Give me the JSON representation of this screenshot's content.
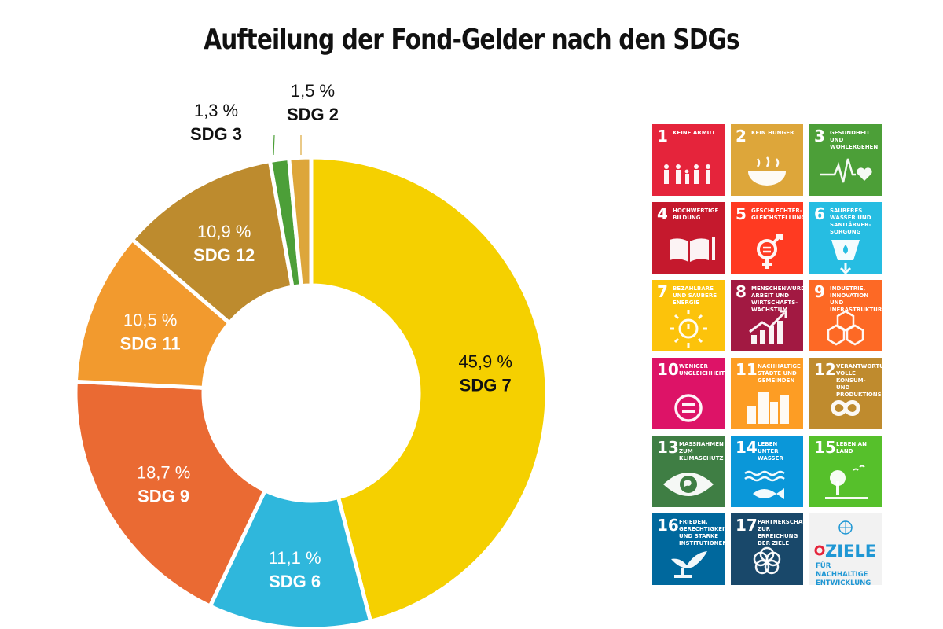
{
  "title": "Aufteilung der Fond-Gelder nach den SDGs",
  "chart_data": {
    "type": "pie",
    "donut": true,
    "slices": [
      {
        "label": "SDG 7",
        "value": 45.9,
        "value_label": "45,9 %",
        "color": "#f5d000"
      },
      {
        "label": "SDG 6",
        "value": 11.1,
        "value_label": "11,1 %",
        "color": "#2fb7dc"
      },
      {
        "label": "SDG 9",
        "value": 18.7,
        "value_label": "18,7 %",
        "color": "#ea6a33"
      },
      {
        "label": "SDG 11",
        "value": 10.5,
        "value_label": "10,5 %",
        "color": "#f29a2e"
      },
      {
        "label": "SDG 12",
        "value": 10.9,
        "value_label": "10,9 %",
        "color": "#bd8b2e"
      },
      {
        "label": "SDG 3",
        "value": 1.3,
        "value_label": "1,3 %",
        "color": "#4c9f38"
      },
      {
        "label": "SDG 2",
        "value": 1.5,
        "value_label": "1,5 %",
        "color": "#dda63a"
      }
    ]
  },
  "sdg_tiles": [
    {
      "number": "1",
      "label": "Keine Armut",
      "color": "#e5243b",
      "icon": "family-icon"
    },
    {
      "number": "2",
      "label": "Kein Hunger",
      "color": "#dda63a",
      "icon": "bowl-icon"
    },
    {
      "number": "3",
      "label": "Gesundheit und Wohlergehen",
      "color": "#4c9f38",
      "icon": "heartbeat-icon"
    },
    {
      "number": "4",
      "label": "Hochwertige Bildung",
      "color": "#c5192d",
      "icon": "book-icon"
    },
    {
      "number": "5",
      "label": "Geschlechter-gleichstellung",
      "color": "#ff3a21",
      "icon": "gender-icon"
    },
    {
      "number": "6",
      "label": "Sauberes Wasser und Sanitärver-sorgung",
      "color": "#26bde2",
      "icon": "water-drop-icon"
    },
    {
      "number": "7",
      "label": "Bezahlbare und saubere Energie",
      "color": "#fcc30b",
      "icon": "sun-power-icon"
    },
    {
      "number": "8",
      "label": "Menschenwürdige Arbeit und Wirtschafts-wachstum",
      "color": "#a21942",
      "icon": "growth-chart-icon"
    },
    {
      "number": "9",
      "label": "Industrie, Innovation und Infrastruktur",
      "color": "#fd6925",
      "icon": "cubes-icon"
    },
    {
      "number": "10",
      "label": "Weniger Ungleichheiten",
      "color": "#dd1367",
      "icon": "equal-icon"
    },
    {
      "number": "11",
      "label": "Nachhaltige Städte und Gemeinden",
      "color": "#fd9d24",
      "icon": "city-icon"
    },
    {
      "number": "12",
      "label": "Verantwortungs-volle Konsum- und Produktionsmuster",
      "color": "#bf8b2e",
      "icon": "infinity-icon"
    },
    {
      "number": "13",
      "label": "Massnahmen zum Klimaschutz",
      "color": "#3f7e44",
      "icon": "eye-globe-icon"
    },
    {
      "number": "14",
      "label": "Leben unter Wasser",
      "color": "#0a97d9",
      "icon": "fish-icon"
    },
    {
      "number": "15",
      "label": "Leben an Land",
      "color": "#56c02b",
      "icon": "tree-icon"
    },
    {
      "number": "16",
      "label": "Frieden, Gerechtigkeit und starke Institutionen",
      "color": "#00689d",
      "icon": "dove-icon"
    },
    {
      "number": "17",
      "label": "Partnerschaften zur Erreichung der Ziele",
      "color": "#19486a",
      "icon": "flower-rings-icon"
    }
  ],
  "ziele_logo": {
    "word": "ZIELE",
    "subtitle": "FÜR NACHHALTIGE ENTWICKLUNG",
    "color": "#1f97d4"
  }
}
